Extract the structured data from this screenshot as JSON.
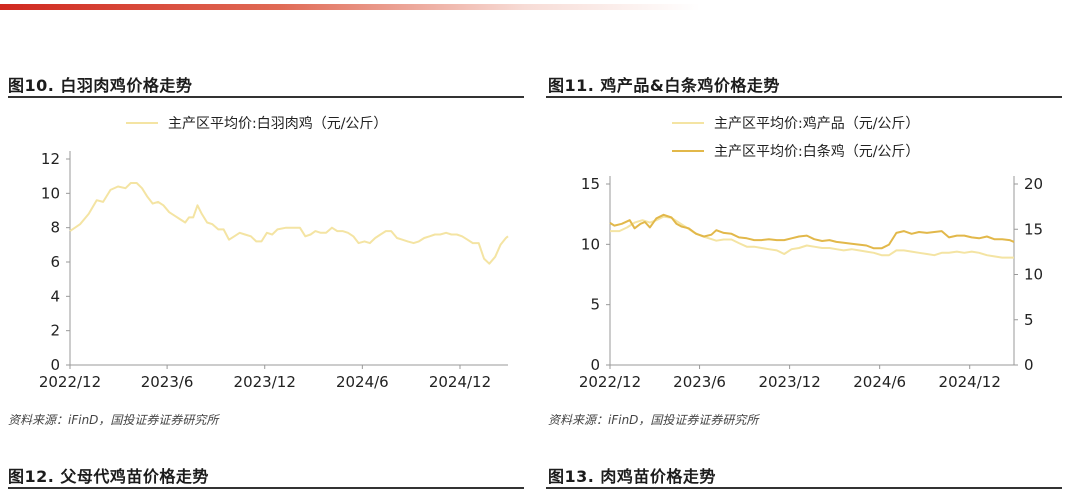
{
  "colors": {
    "accent": "#d0281f",
    "series_light": "#f4e4a3",
    "series_dark": "#e2b84a",
    "axis": "#999999"
  },
  "figures": [
    {
      "title": "图10. 白羽肉鸡价格走势"
    },
    {
      "title": "图11. 鸡产品&白条鸡价格走势"
    },
    {
      "title": "图12. 父母代鸡苗价格走势"
    },
    {
      "title": "图13. 肉鸡苗价格走势"
    }
  ],
  "sources": [
    "资料来源：iFinD，国投证券证券研究所",
    "资料来源：iFinD，国投证券证券研究所"
  ],
  "chart_data": [
    {
      "type": "line",
      "title": "图10. 白羽肉鸡价格走势",
      "x_tick_labels": [
        "2022/12",
        "2023/6",
        "2023/12",
        "2024/6",
        "2024/12"
      ],
      "ylim": [
        0,
        12
      ],
      "y_ticks": [
        0,
        2,
        4,
        6,
        8,
        10,
        12
      ],
      "grid": false,
      "legend_position": "top-center",
      "series": [
        {
          "name": "主产区平均价:白羽肉鸡（元/公斤）",
          "color": "#f4e4a3",
          "axis": "left",
          "points": [
            [
              "2022-12-01",
              7.8
            ],
            [
              "2022-12-20",
              8.2
            ],
            [
              "2023-01-05",
              8.8
            ],
            [
              "2023-01-20",
              9.6
            ],
            [
              "2023-02-01",
              9.5
            ],
            [
              "2023-02-15",
              10.2
            ],
            [
              "2023-03-01",
              10.4
            ],
            [
              "2023-03-15",
              10.3
            ],
            [
              "2023-03-25",
              10.6
            ],
            [
              "2023-04-05",
              10.6
            ],
            [
              "2023-04-15",
              10.3
            ],
            [
              "2023-04-25",
              9.8
            ],
            [
              "2023-05-05",
              9.4
            ],
            [
              "2023-05-15",
              9.5
            ],
            [
              "2023-05-25",
              9.3
            ],
            [
              "2023-06-05",
              8.9
            ],
            [
              "2023-06-15",
              8.7
            ],
            [
              "2023-06-25",
              8.5
            ],
            [
              "2023-07-05",
              8.3
            ],
            [
              "2023-07-12",
              8.6
            ],
            [
              "2023-07-20",
              8.6
            ],
            [
              "2023-07-28",
              9.3
            ],
            [
              "2023-08-05",
              8.8
            ],
            [
              "2023-08-15",
              8.3
            ],
            [
              "2023-08-25",
              8.2
            ],
            [
              "2023-09-05",
              7.9
            ],
            [
              "2023-09-15",
              7.9
            ],
            [
              "2023-09-25",
              7.3
            ],
            [
              "2023-10-05",
              7.5
            ],
            [
              "2023-10-15",
              7.7
            ],
            [
              "2023-10-25",
              7.6
            ],
            [
              "2023-11-05",
              7.5
            ],
            [
              "2023-11-15",
              7.2
            ],
            [
              "2023-11-25",
              7.2
            ],
            [
              "2023-12-05",
              7.7
            ],
            [
              "2023-12-15",
              7.6
            ],
            [
              "2023-12-25",
              7.9
            ],
            [
              "2024-01-10",
              8.0
            ],
            [
              "2024-01-25",
              8.0
            ],
            [
              "2024-02-05",
              8.0
            ],
            [
              "2024-02-15",
              7.5
            ],
            [
              "2024-02-25",
              7.6
            ],
            [
              "2024-03-05",
              7.8
            ],
            [
              "2024-03-15",
              7.7
            ],
            [
              "2024-03-25",
              7.7
            ],
            [
              "2024-04-05",
              8.0
            ],
            [
              "2024-04-15",
              7.8
            ],
            [
              "2024-04-25",
              7.8
            ],
            [
              "2024-05-05",
              7.7
            ],
            [
              "2024-05-15",
              7.5
            ],
            [
              "2024-05-25",
              7.1
            ],
            [
              "2024-06-05",
              7.2
            ],
            [
              "2024-06-15",
              7.1
            ],
            [
              "2024-06-25",
              7.4
            ],
            [
              "2024-07-05",
              7.6
            ],
            [
              "2024-07-15",
              7.8
            ],
            [
              "2024-07-25",
              7.8
            ],
            [
              "2024-08-05",
              7.4
            ],
            [
              "2024-08-15",
              7.3
            ],
            [
              "2024-08-25",
              7.2
            ],
            [
              "2024-09-05",
              7.1
            ],
            [
              "2024-09-15",
              7.2
            ],
            [
              "2024-09-25",
              7.4
            ],
            [
              "2024-10-05",
              7.5
            ],
            [
              "2024-10-15",
              7.6
            ],
            [
              "2024-10-25",
              7.6
            ],
            [
              "2024-11-05",
              7.7
            ],
            [
              "2024-11-15",
              7.6
            ],
            [
              "2024-11-25",
              7.6
            ],
            [
              "2024-12-05",
              7.5
            ],
            [
              "2024-12-15",
              7.3
            ],
            [
              "2024-12-25",
              7.1
            ],
            [
              "2025-01-05",
              7.1
            ],
            [
              "2025-01-15",
              6.2
            ],
            [
              "2025-01-25",
              5.9
            ],
            [
              "2025-02-05",
              6.3
            ],
            [
              "2025-02-15",
              7.0
            ],
            [
              "2025-02-25",
              7.4
            ],
            [
              "2025-03-01",
              7.5
            ]
          ]
        }
      ]
    },
    {
      "type": "line",
      "title": "图11. 鸡产品&白条鸡价格走势",
      "x_tick_labels": [
        "2022/12",
        "2023/6",
        "2023/12",
        "2024/6",
        "2024/12"
      ],
      "ylim_left": [
        0,
        15
      ],
      "y_ticks_left": [
        0,
        5,
        10,
        15
      ],
      "ylim_right": [
        0,
        20
      ],
      "y_ticks_right": [
        0,
        5,
        10,
        15,
        20
      ],
      "grid": false,
      "legend_position": "top-center",
      "series": [
        {
          "name": "主产区平均价:鸡产品（元/公斤）",
          "color": "#f4e4a3",
          "axis": "left",
          "points": [
            [
              "2022-12-01",
              11.1
            ],
            [
              "2022-12-20",
              11.1
            ],
            [
              "2023-01-05",
              11.4
            ],
            [
              "2023-01-20",
              11.8
            ],
            [
              "2023-02-05",
              12.0
            ],
            [
              "2023-02-20",
              11.8
            ],
            [
              "2023-03-05",
              12.0
            ],
            [
              "2023-03-20",
              12.3
            ],
            [
              "2023-04-05",
              12.2
            ],
            [
              "2023-04-20",
              11.8
            ],
            [
              "2023-05-05",
              11.4
            ],
            [
              "2023-05-20",
              11.0
            ],
            [
              "2023-06-05",
              10.7
            ],
            [
              "2023-06-20",
              10.5
            ],
            [
              "2023-07-05",
              10.3
            ],
            [
              "2023-07-20",
              10.4
            ],
            [
              "2023-08-05",
              10.4
            ],
            [
              "2023-08-20",
              10.1
            ],
            [
              "2023-09-05",
              9.8
            ],
            [
              "2023-09-20",
              9.8
            ],
            [
              "2023-10-05",
              9.7
            ],
            [
              "2023-10-20",
              9.6
            ],
            [
              "2023-11-05",
              9.5
            ],
            [
              "2023-11-20",
              9.2
            ],
            [
              "2023-12-05",
              9.6
            ],
            [
              "2023-12-20",
              9.7
            ],
            [
              "2024-01-05",
              9.9
            ],
            [
              "2024-01-20",
              9.8
            ],
            [
              "2024-02-05",
              9.7
            ],
            [
              "2024-02-20",
              9.7
            ],
            [
              "2024-03-05",
              9.6
            ],
            [
              "2024-03-20",
              9.5
            ],
            [
              "2024-04-05",
              9.6
            ],
            [
              "2024-04-20",
              9.5
            ],
            [
              "2024-05-05",
              9.4
            ],
            [
              "2024-05-20",
              9.3
            ],
            [
              "2024-06-05",
              9.1
            ],
            [
              "2024-06-20",
              9.1
            ],
            [
              "2024-07-05",
              9.5
            ],
            [
              "2024-07-20",
              9.5
            ],
            [
              "2024-08-05",
              9.4
            ],
            [
              "2024-08-20",
              9.3
            ],
            [
              "2024-09-05",
              9.2
            ],
            [
              "2024-09-20",
              9.1
            ],
            [
              "2024-10-05",
              9.3
            ],
            [
              "2024-10-20",
              9.3
            ],
            [
              "2024-11-05",
              9.4
            ],
            [
              "2024-11-20",
              9.3
            ],
            [
              "2024-12-05",
              9.4
            ],
            [
              "2024-12-20",
              9.3
            ],
            [
              "2025-01-05",
              9.1
            ],
            [
              "2025-01-20",
              9.0
            ],
            [
              "2025-02-05",
              8.9
            ],
            [
              "2025-03-01",
              8.9
            ]
          ]
        },
        {
          "name": "主产区平均价:白条鸡（元/公斤）",
          "color": "#e2b84a",
          "axis": "right",
          "points": [
            [
              "2022-12-01",
              15.7
            ],
            [
              "2022-12-10",
              15.4
            ],
            [
              "2022-12-25",
              15.6
            ],
            [
              "2023-01-10",
              16.0
            ],
            [
              "2023-01-20",
              15.1
            ],
            [
              "2023-02-01",
              15.6
            ],
            [
              "2023-02-10",
              15.8
            ],
            [
              "2023-02-20",
              15.2
            ],
            [
              "2023-03-05",
              16.2
            ],
            [
              "2023-03-20",
              16.6
            ],
            [
              "2023-04-05",
              16.3
            ],
            [
              "2023-04-15",
              15.6
            ],
            [
              "2023-04-25",
              15.3
            ],
            [
              "2023-05-10",
              15.1
            ],
            [
              "2023-05-25",
              14.5
            ],
            [
              "2023-06-10",
              14.2
            ],
            [
              "2023-06-25",
              14.4
            ],
            [
              "2023-07-05",
              14.9
            ],
            [
              "2023-07-20",
              14.6
            ],
            [
              "2023-08-05",
              14.5
            ],
            [
              "2023-08-20",
              14.1
            ],
            [
              "2023-09-05",
              14.0
            ],
            [
              "2023-09-20",
              13.8
            ],
            [
              "2023-10-05",
              13.8
            ],
            [
              "2023-10-20",
              13.9
            ],
            [
              "2023-11-05",
              13.8
            ],
            [
              "2023-11-20",
              13.8
            ],
            [
              "2023-12-05",
              14.0
            ],
            [
              "2023-12-20",
              14.2
            ],
            [
              "2024-01-05",
              14.3
            ],
            [
              "2024-01-20",
              13.9
            ],
            [
              "2024-02-05",
              13.7
            ],
            [
              "2024-02-20",
              13.8
            ],
            [
              "2024-03-05",
              13.6
            ],
            [
              "2024-03-20",
              13.5
            ],
            [
              "2024-04-05",
              13.4
            ],
            [
              "2024-04-20",
              13.3
            ],
            [
              "2024-05-05",
              13.2
            ],
            [
              "2024-05-20",
              12.9
            ],
            [
              "2024-06-05",
              12.9
            ],
            [
              "2024-06-20",
              13.3
            ],
            [
              "2024-07-05",
              14.6
            ],
            [
              "2024-07-20",
              14.8
            ],
            [
              "2024-08-05",
              14.5
            ],
            [
              "2024-08-20",
              14.7
            ],
            [
              "2024-09-05",
              14.6
            ],
            [
              "2024-09-20",
              14.7
            ],
            [
              "2024-10-05",
              14.8
            ],
            [
              "2024-10-20",
              14.1
            ],
            [
              "2024-11-05",
              14.3
            ],
            [
              "2024-11-20",
              14.3
            ],
            [
              "2024-12-05",
              14.1
            ],
            [
              "2024-12-20",
              14.0
            ],
            [
              "2025-01-05",
              14.2
            ],
            [
              "2025-01-20",
              13.9
            ],
            [
              "2025-02-05",
              13.9
            ],
            [
              "2025-02-20",
              13.8
            ],
            [
              "2025-03-01",
              13.6
            ]
          ]
        }
      ]
    }
  ]
}
